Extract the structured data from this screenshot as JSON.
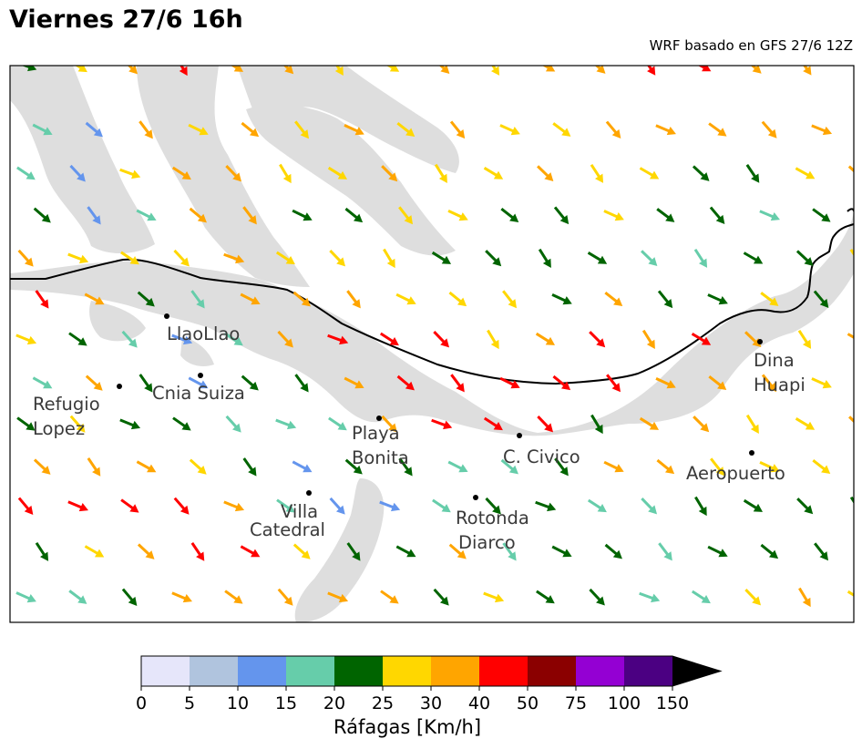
{
  "header": {
    "title": "Viernes 27/6 16h",
    "subtitle": "WRF basado en GFS 27/6 12Z"
  },
  "places": [
    {
      "name": "LlaoLlao",
      "lines": [
        "LlaoLlao"
      ]
    },
    {
      "name": "Cnia Suiza",
      "lines": [
        "Cnia Suiza"
      ]
    },
    {
      "name": "Refugio Lopez",
      "lines": [
        "Refugio",
        "Lopez"
      ]
    },
    {
      "name": "Playa Bonita",
      "lines": [
        "Playa",
        "Bonita"
      ]
    },
    {
      "name": "C. Civico",
      "lines": [
        "C. Civico"
      ]
    },
    {
      "name": "Dina Huapi",
      "lines": [
        "Dina",
        "Huapi"
      ]
    },
    {
      "name": "Aeropuerto",
      "lines": [
        "Aeropuerto"
      ]
    },
    {
      "name": "Villa Catedral",
      "lines": [
        "Villa",
        "Catedral"
      ]
    },
    {
      "name": "Rotonda Diarco",
      "lines": [
        "Rotonda",
        "Diarco"
      ]
    }
  ],
  "colorbar": {
    "label": "Ráfagas [Km/h]",
    "ticks": [
      "0",
      "5",
      "10",
      "15",
      "20",
      "25",
      "30",
      "40",
      "50",
      "75",
      "100",
      "150"
    ],
    "colors": [
      "#e6e6fa",
      "#b0c4de",
      "#6495ed",
      "#66cdaa",
      "#006400",
      "#ffd700",
      "#ffa500",
      "#ff0000",
      "#8b0000",
      "#9400d3",
      "#4b0082"
    ],
    "extend_color": "#000000"
  },
  "colors": {
    "water": "#dedede",
    "frame": "#000000",
    "boundary": "#000000"
  }
}
